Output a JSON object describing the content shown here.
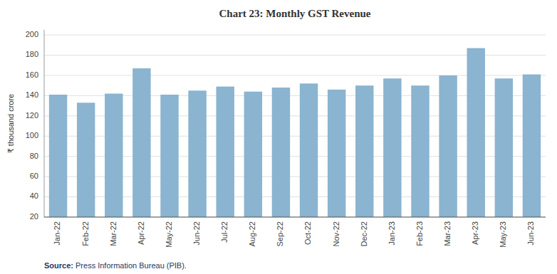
{
  "chart_data": {
    "type": "bar",
    "title": "Chart 23: Monthly GST Revenue",
    "categories": [
      "Jan-22",
      "Feb-22",
      "Mar-22",
      "Apr-22",
      "May-22",
      "Jun-22",
      "Jul-22",
      "Aug-22",
      "Sep-22",
      "Oct-22",
      "Nov-22",
      "Dec-22",
      "Jan-23",
      "Feb-23",
      "Mar-23",
      "Apr-23",
      "May-23",
      "Jun-23"
    ],
    "values": [
      141,
      133,
      142,
      167,
      141,
      145,
      149,
      144,
      148,
      152,
      146,
      150,
      157,
      150,
      160,
      187,
      157,
      161
    ],
    "color": "#8ab4d0",
    "y_label": "₹ thousand crore",
    "ylim": [
      20,
      205
    ],
    "yticks": [
      20,
      40,
      60,
      80,
      100,
      120,
      140,
      160,
      180,
      200
    ],
    "grid": true,
    "annotations": [
      "Source:",
      " Press Information Bureau (PIB)."
    ]
  }
}
